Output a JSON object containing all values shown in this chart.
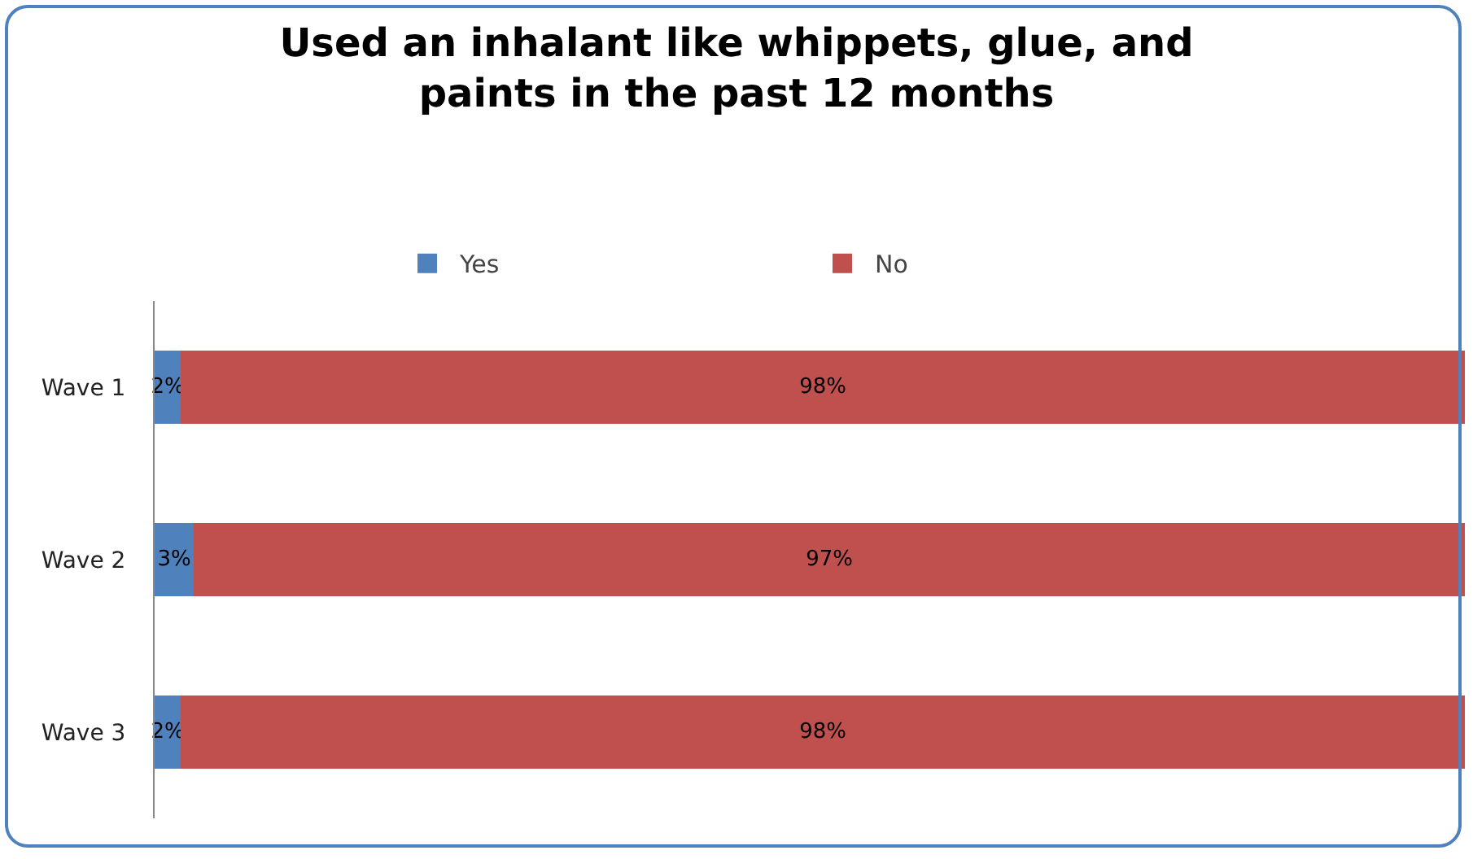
{
  "chart_data": {
    "type": "bar",
    "orientation": "horizontal",
    "stacked": true,
    "title": "Used an inhalant like whippets, glue, and\npaints in the past 12 months",
    "categories": [
      "Wave 1",
      "Wave 2",
      "Wave 3"
    ],
    "series": [
      {
        "name": "Yes",
        "color": "#4f81bd",
        "values": [
          2,
          3,
          2
        ],
        "value_labels": [
          "2%",
          "3%",
          "2%"
        ]
      },
      {
        "name": "No",
        "color": "#c0504d",
        "values": [
          98,
          97,
          98
        ],
        "value_labels": [
          "98%",
          "97%",
          "98%"
        ]
      }
    ],
    "xlim": [
      0,
      100
    ],
    "grid": false,
    "legend": "top"
  }
}
